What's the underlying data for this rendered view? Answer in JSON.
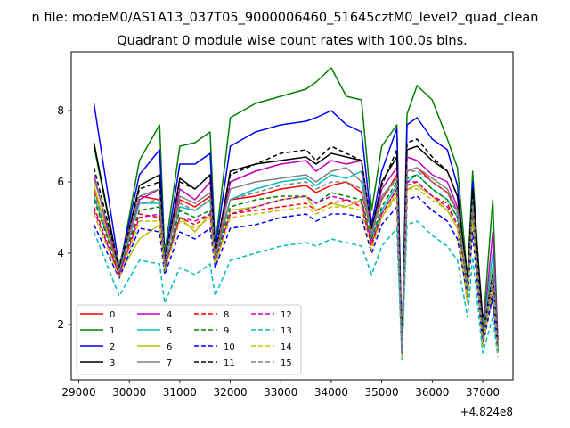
{
  "chart_data": {
    "type": "line",
    "suptitle": "n file: modeM0/AS1A13_037T05_9000006460_51645cztM0_level2_quad_clean",
    "title": "Quadrant 0 module wise count rates with 100.0s bins.",
    "xlabel": "",
    "ylabel": "",
    "x_offset_label": "+4.824e8",
    "xlim": [
      28850,
      37600
    ],
    "ylim": [
      0.45,
      9.65
    ],
    "xticks": [
      29000,
      30000,
      31000,
      32000,
      33000,
      34000,
      35000,
      36000,
      37000
    ],
    "yticks": [
      2,
      4,
      6,
      8
    ],
    "legend_position": "lower-left",
    "x": [
      29300,
      29800,
      30200,
      30600,
      30700,
      31000,
      31300,
      31600,
      31700,
      32000,
      32500,
      33000,
      33500,
      33700,
      34000,
      34300,
      34600,
      34800,
      35000,
      35300,
      35400,
      35500,
      35700,
      36000,
      36300,
      36500,
      36700,
      36800,
      37000,
      37200,
      37300
    ],
    "series": [
      {
        "name": "0",
        "color": "#ff0000",
        "dash": "solid",
        "values": [
          5.8,
          3.6,
          5.6,
          5.5,
          3.8,
          5.5,
          5.3,
          5.6,
          4.0,
          5.5,
          5.6,
          5.8,
          5.9,
          5.7,
          5.9,
          6.0,
          5.7,
          4.6,
          5.5,
          6.2,
          1.3,
          6.3,
          6.4,
          6.0,
          5.7,
          5.2,
          3.0,
          5.6,
          1.6,
          3.6,
          1.6
        ]
      },
      {
        "name": "1",
        "color": "#008000",
        "dash": "solid",
        "values": [
          7.0,
          3.5,
          6.6,
          7.6,
          4.0,
          7.0,
          7.1,
          7.4,
          4.2,
          7.8,
          8.2,
          8.4,
          8.6,
          8.8,
          9.2,
          8.4,
          8.3,
          5.2,
          7.0,
          7.6,
          1.3,
          7.9,
          8.7,
          8.3,
          7.2,
          6.4,
          3.3,
          6.3,
          1.8,
          5.5,
          1.6
        ]
      },
      {
        "name": "2",
        "color": "#0000ff",
        "dash": "solid",
        "values": [
          8.2,
          3.6,
          6.2,
          6.9,
          3.8,
          6.5,
          6.5,
          6.8,
          4.1,
          7.0,
          7.4,
          7.6,
          7.7,
          7.8,
          8.0,
          7.6,
          7.4,
          4.8,
          6.3,
          7.5,
          1.2,
          7.6,
          7.8,
          7.2,
          6.9,
          5.9,
          2.9,
          6.0,
          1.8,
          2.7,
          1.3
        ]
      },
      {
        "name": "3",
        "color": "#000000",
        "dash": "solid",
        "values": [
          7.1,
          3.5,
          5.9,
          6.2,
          3.6,
          6.1,
          5.8,
          6.2,
          3.9,
          6.3,
          6.5,
          6.6,
          6.7,
          6.5,
          6.8,
          6.7,
          6.6,
          4.6,
          6.0,
          6.7,
          1.2,
          6.9,
          7.0,
          6.6,
          6.3,
          5.6,
          3.3,
          5.8,
          2.2,
          2.8,
          1.4
        ]
      },
      {
        "name": "4",
        "color": "#bf00bf",
        "dash": "solid",
        "values": [
          6.2,
          3.4,
          5.5,
          5.8,
          3.7,
          5.8,
          5.5,
          6.0,
          3.9,
          6.0,
          6.3,
          6.5,
          6.6,
          6.3,
          6.6,
          6.5,
          6.6,
          4.5,
          5.8,
          6.4,
          1.1,
          6.7,
          6.6,
          6.2,
          6.0,
          5.3,
          2.9,
          5.4,
          1.6,
          4.6,
          1.5
        ]
      },
      {
        "name": "5",
        "color": "#00bfbf",
        "dash": "solid",
        "values": [
          5.6,
          3.5,
          5.4,
          5.4,
          3.5,
          5.3,
          5.2,
          5.5,
          3.8,
          5.5,
          5.8,
          6.0,
          6.1,
          5.9,
          6.2,
          6.1,
          6.3,
          4.4,
          5.2,
          5.9,
          1.1,
          6.0,
          6.2,
          5.8,
          5.5,
          5.0,
          3.0,
          5.3,
          1.6,
          4.0,
          1.3
        ]
      },
      {
        "name": "6",
        "color": "#bfbf00",
        "dash": "solid",
        "values": [
          5.9,
          3.4,
          4.4,
          4.8,
          3.6,
          5.0,
          4.6,
          5.1,
          3.6,
          5.2,
          5.3,
          5.5,
          5.6,
          5.2,
          5.4,
          5.3,
          5.5,
          4.3,
          5.0,
          5.7,
          1.1,
          5.8,
          5.9,
          5.6,
          5.2,
          4.7,
          2.6,
          5.2,
          1.5,
          3.6,
          1.2
        ]
      },
      {
        "name": "7",
        "color": "#808080",
        "dash": "solid",
        "values": [
          6.1,
          3.7,
          5.6,
          5.8,
          3.8,
          5.6,
          5.4,
          5.7,
          4.0,
          5.8,
          6.0,
          6.1,
          6.2,
          6.0,
          6.3,
          6.4,
          6.0,
          4.6,
          5.6,
          6.1,
          1.2,
          6.3,
          6.4,
          6.1,
          5.8,
          5.2,
          3.2,
          5.5,
          1.7,
          3.5,
          1.5
        ]
      },
      {
        "name": "8",
        "color": "#ff0000",
        "dash": "dashed",
        "values": [
          5.3,
          3.4,
          5.1,
          5.0,
          3.6,
          5.0,
          4.8,
          5.1,
          3.8,
          5.1,
          5.2,
          5.3,
          5.4,
          5.2,
          5.4,
          5.5,
          5.3,
          4.2,
          5.1,
          5.8,
          1.1,
          5.9,
          6.0,
          5.6,
          5.4,
          4.8,
          2.9,
          5.0,
          1.4,
          3.0,
          1.3
        ]
      },
      {
        "name": "9",
        "color": "#008000",
        "dash": "dashed",
        "values": [
          5.5,
          3.5,
          5.2,
          5.3,
          3.6,
          5.2,
          5.0,
          5.2,
          3.8,
          5.3,
          5.5,
          5.6,
          5.6,
          5.4,
          5.7,
          5.6,
          5.5,
          4.4,
          5.3,
          6.0,
          1.2,
          6.1,
          6.2,
          5.8,
          5.5,
          5.0,
          3.0,
          5.2,
          1.5,
          3.2,
          1.4
        ]
      },
      {
        "name": "10",
        "color": "#0000ff",
        "dash": "dashed",
        "values": [
          4.8,
          3.3,
          4.7,
          4.6,
          3.4,
          4.6,
          4.4,
          4.7,
          3.6,
          4.7,
          4.8,
          5.0,
          5.1,
          4.9,
          5.1,
          5.1,
          5.0,
          4.0,
          4.8,
          5.3,
          1.1,
          5.5,
          5.6,
          5.2,
          4.9,
          4.4,
          2.8,
          4.6,
          1.4,
          2.8,
          1.2
        ]
      },
      {
        "name": "11",
        "color": "#000000",
        "dash": "dashed",
        "values": [
          6.4,
          3.6,
          5.8,
          6.0,
          3.8,
          6.0,
          5.8,
          6.2,
          4.0,
          6.2,
          6.5,
          6.8,
          6.9,
          6.6,
          7.0,
          6.8,
          6.6,
          4.7,
          5.9,
          6.9,
          1.2,
          7.1,
          7.2,
          6.7,
          6.3,
          5.6,
          3.3,
          5.8,
          1.7,
          3.4,
          1.5
        ]
      },
      {
        "name": "12",
        "color": "#bf00bf",
        "dash": "dashed",
        "values": [
          5.2,
          3.4,
          5.0,
          5.1,
          3.6,
          5.0,
          4.9,
          5.1,
          3.8,
          5.1,
          5.3,
          5.5,
          5.6,
          5.4,
          5.6,
          5.5,
          5.4,
          4.3,
          5.1,
          5.8,
          1.1,
          6.0,
          6.0,
          5.6,
          5.3,
          4.8,
          2.9,
          5.1,
          1.4,
          3.1,
          1.3
        ]
      },
      {
        "name": "13",
        "color": "#00bfbf",
        "dash": "dashed",
        "values": [
          4.6,
          2.8,
          3.8,
          3.7,
          2.6,
          3.6,
          3.4,
          3.7,
          2.8,
          3.8,
          4.0,
          4.2,
          4.3,
          4.2,
          4.4,
          4.3,
          4.2,
          3.4,
          4.2,
          4.7,
          1.0,
          4.8,
          4.9,
          4.5,
          4.2,
          3.8,
          2.2,
          3.9,
          1.2,
          2.2,
          1.1
        ]
      },
      {
        "name": "14",
        "color": "#bfbf00",
        "dash": "dashed",
        "values": [
          5.1,
          3.3,
          4.9,
          4.9,
          3.5,
          4.9,
          4.7,
          5.0,
          3.7,
          5.0,
          5.1,
          5.2,
          5.3,
          5.1,
          5.3,
          5.3,
          5.2,
          4.1,
          5.0,
          5.6,
          1.1,
          5.8,
          5.8,
          5.5,
          5.2,
          4.7,
          2.8,
          4.9,
          1.4,
          3.0,
          1.2
        ]
      },
      {
        "name": "15",
        "color": "#808080",
        "dash": "dashed",
        "values": [
          5.7,
          3.5,
          5.4,
          5.5,
          3.7,
          5.4,
          5.2,
          5.5,
          3.9,
          5.5,
          5.7,
          5.9,
          6.0,
          5.8,
          6.0,
          6.0,
          5.8,
          4.5,
          5.5,
          6.1,
          1.2,
          6.3,
          6.3,
          6.0,
          5.7,
          5.1,
          3.1,
          5.3,
          1.6,
          3.3,
          1.4
        ]
      }
    ]
  }
}
